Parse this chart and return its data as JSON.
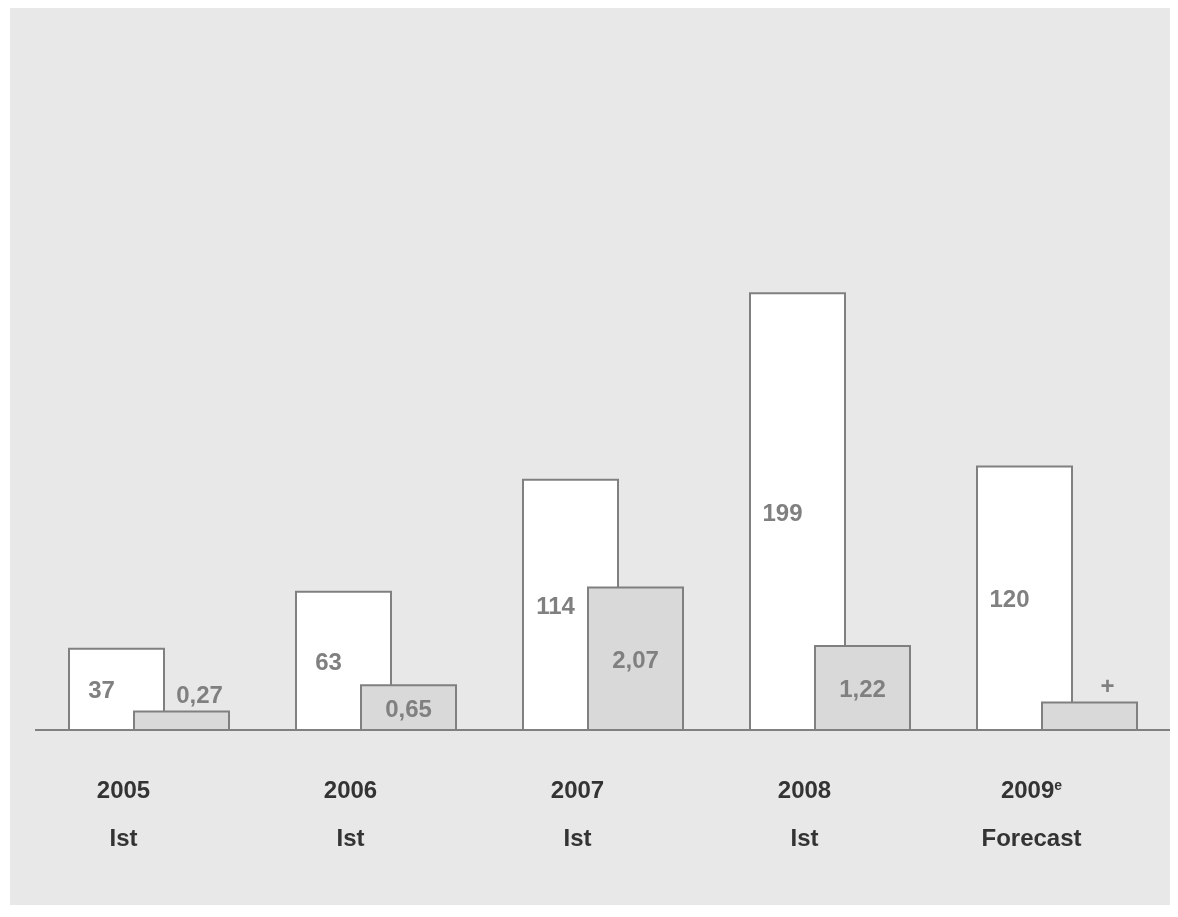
{
  "chart_data": {
    "type": "bar",
    "categories": [
      "2005\nIst",
      "2006\nIst",
      "2007\nIst",
      "2008\nIst",
      "2009$^{e}$\nForecast"
    ],
    "series": [
      {
        "color": "#ffffff",
        "values": [
          37,
          63,
          114,
          199,
          120
        ],
        "value_labels": [
          "37",
          "63",
          "114",
          "199",
          "120"
        ]
      },
      {
        "color": "#d9d9d9",
        "axis": "y2",
        "values": [
          0.27,
          0.65,
          2.07,
          1.22,
          0.4
        ],
        "value_labels": [
          "0,27",
          "0,65",
          "2,07",
          "1,22",
          "+"
        ]
      }
    ]
  }
}
